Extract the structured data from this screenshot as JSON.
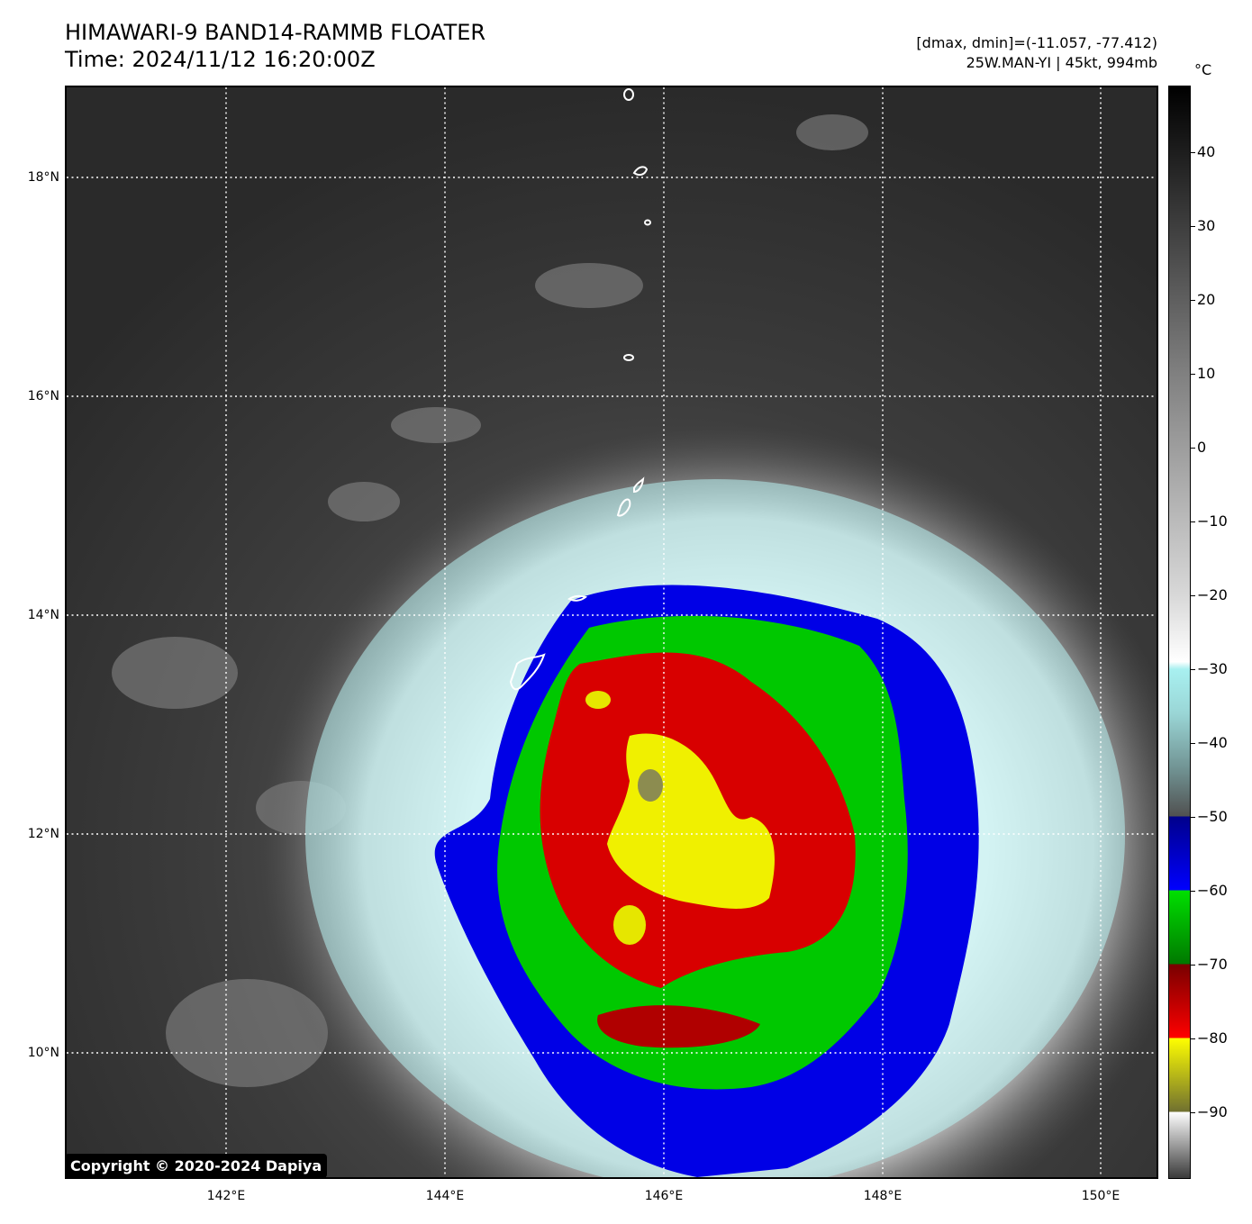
{
  "header": {
    "title": "HIMAWARI-9 BAND14-RAMMB FLOATER",
    "time": "Time: 2024/11/12 16:20:00Z",
    "range_text": "[dmax, dmin]=(-11.057, -77.412)",
    "storm_text": "25W.MAN-YI | 45kt, 994mb"
  },
  "map": {
    "lat_labels": [
      "18°N",
      "16°N",
      "14°N",
      "12°N",
      "10°N"
    ],
    "lon_labels": [
      "142°E",
      "144°E",
      "146°E",
      "148°E",
      "150°E"
    ],
    "copyright": "Copyright © 2020-2024 Dapiya"
  },
  "colorbar": {
    "unit": "°C",
    "labels": [
      "40",
      "30",
      "20",
      "10",
      "0",
      "−10",
      "−20",
      "−30",
      "−40",
      "−50",
      "−60",
      "−70",
      "−80",
      "−90"
    ],
    "colors": {
      "warm_top": "#000000",
      "warm_mid": "#808080",
      "white": "#ffffff",
      "cyan": "#a8f0f0",
      "gray_dark": "#505050",
      "navy": "#00008b",
      "blue": "#0000ff",
      "green_light": "#00e000",
      "green_dark": "#007800",
      "red_dark": "#780000",
      "red": "#ff0000",
      "yellow": "#ffff00",
      "olive": "#707030"
    }
  }
}
